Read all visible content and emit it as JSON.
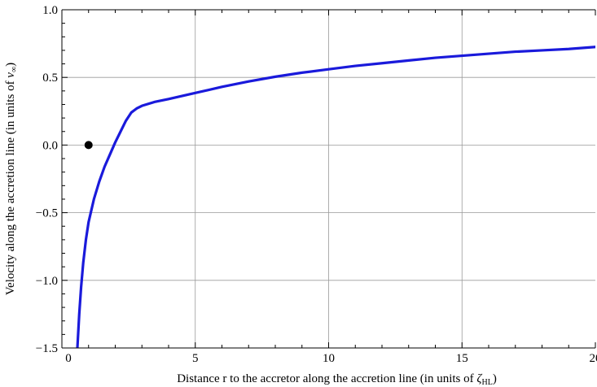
{
  "chart_data": {
    "type": "line",
    "xlabel": "Distance r to the accretor along the accretion line (in units of ",
    "xlabel_sym": "ζ",
    "xlabel_sub": "HL",
    "xlabel_end": ")",
    "ylabel": "Velocity along the accretion line (in units of ",
    "ylabel_sym": "v",
    "ylabel_sub": "∞",
    "ylabel_end": ")",
    "xlim": [
      0,
      20
    ],
    "ylim": [
      -1.5,
      1.0
    ],
    "x_ticks": [
      0,
      5,
      10,
      15,
      20
    ],
    "x_tick_labels": [
      "0",
      "5",
      "10",
      "15",
      "20"
    ],
    "y_ticks": [
      -1.5,
      -1.0,
      -0.5,
      0.0,
      0.5,
      1.0
    ],
    "y_tick_labels": [
      "−1.5",
      "−1.0",
      "−0.5",
      "0.0",
      "0.5",
      "1.0"
    ],
    "grid": true,
    "series": [
      {
        "color": "#1a1adb",
        "x": [
          0.58,
          0.65,
          0.72,
          0.8,
          0.9,
          1.0,
          1.2,
          1.4,
          1.6,
          1.8,
          2.0,
          2.2,
          2.4,
          2.6,
          2.8,
          3.0,
          3.5,
          4.0,
          5.0,
          6.0,
          7.0,
          8.0,
          9.0,
          10.0,
          11.0,
          12.0,
          13.0,
          14.0,
          15.0,
          16.0,
          17.0,
          18.0,
          19.0,
          20.0
        ],
        "y": [
          -1.5,
          -1.25,
          -1.05,
          -0.87,
          -0.7,
          -0.57,
          -0.4,
          -0.27,
          -0.16,
          -0.07,
          0.02,
          0.1,
          0.18,
          0.24,
          0.27,
          0.29,
          0.32,
          0.34,
          0.385,
          0.43,
          0.47,
          0.505,
          0.535,
          0.56,
          0.585,
          0.605,
          0.625,
          0.645,
          0.66,
          0.675,
          0.69,
          0.7,
          0.71,
          0.725
        ]
      }
    ],
    "points": [
      {
        "x": 1.0,
        "y": 0.0,
        "color": "#000000"
      }
    ]
  }
}
